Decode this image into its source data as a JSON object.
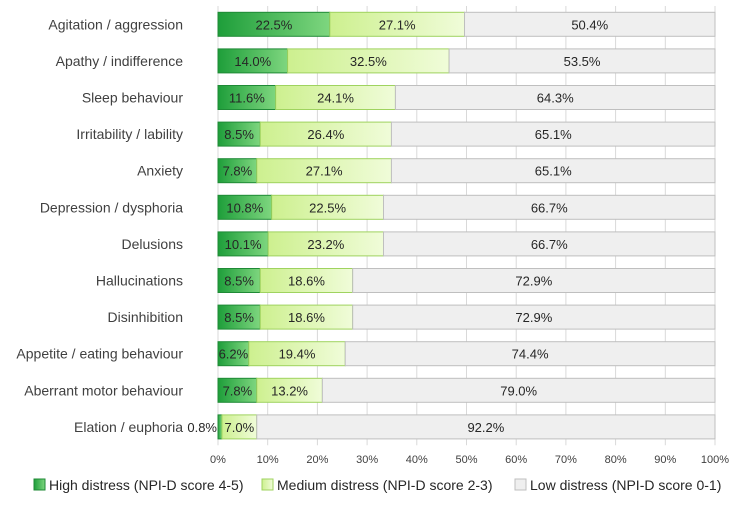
{
  "chart_data": {
    "type": "bar",
    "orientation": "horizontal",
    "stacked": true,
    "percent": true,
    "categories": [
      "Agitation / aggression",
      "Apathy / indifference",
      "Sleep behaviour",
      "Irritability / lability",
      "Anxiety",
      "Depression / dysphoria",
      "Delusions",
      "Hallucinations",
      "Disinhibition",
      "Appetite / eating behaviour",
      "Aberrant motor behaviour",
      "Elation / euphoria"
    ],
    "series": [
      {
        "name": "High distress (NPI-D score 4-5)",
        "color": "#2db34a",
        "values": [
          22.5,
          14.0,
          11.6,
          8.5,
          7.8,
          10.8,
          10.1,
          8.5,
          8.5,
          6.2,
          7.8,
          0.8
        ],
        "labels": [
          "22.5%",
          "14.0%",
          "11.6%",
          "8.5%",
          "7.8%",
          "10.8%",
          "10.1%",
          "8.5%",
          "8.5%",
          "6.2%",
          "7.8%",
          "0.8%"
        ]
      },
      {
        "name": "Medium distress (NPI-D score 2-3)",
        "color": "#d9f7a6",
        "values": [
          27.1,
          32.5,
          24.1,
          26.4,
          27.1,
          22.5,
          23.2,
          18.6,
          18.6,
          19.4,
          13.2,
          7.0
        ],
        "labels": [
          "27.1%",
          "32.5%",
          "24.1%",
          "26.4%",
          "27.1%",
          "22.5%",
          "23.2%",
          "18.6%",
          "18.6%",
          "19.4%",
          "13.2%",
          "7.0%"
        ]
      },
      {
        "name": "Low distress (NPI-D score 0-1)",
        "color": "#efefef",
        "values": [
          50.4,
          53.5,
          64.3,
          65.1,
          65.1,
          66.7,
          66.7,
          72.9,
          72.9,
          74.4,
          79.0,
          92.2
        ],
        "labels": [
          "50.4%",
          "53.5%",
          "64.3%",
          "65.1%",
          "65.1%",
          "66.7%",
          "66.7%",
          "72.9%",
          "72.9%",
          "74.4%",
          "79.0%",
          "92.2%"
        ]
      }
    ],
    "xticks": [
      "0%",
      "10%",
      "20%",
      "30%",
      "40%",
      "50%",
      "60%",
      "70%",
      "80%",
      "90%",
      "100%"
    ],
    "xlim": [
      0,
      100
    ],
    "grid": true,
    "legend_position": "bottom",
    "title": "",
    "xlabel": "",
    "ylabel": ""
  }
}
